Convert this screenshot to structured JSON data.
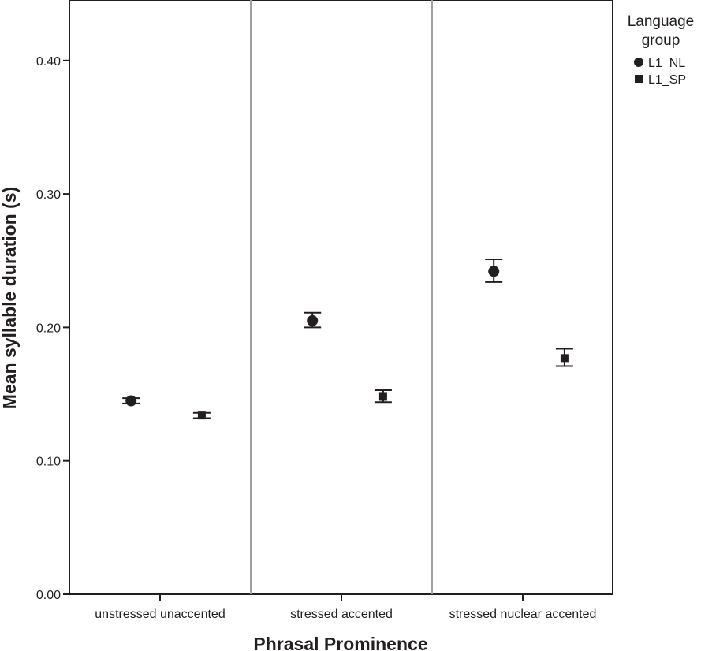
{
  "chart_data": {
    "type": "scatter",
    "xlabel": "Phrasal Prominence",
    "ylabel": "Mean syllable duration (s)",
    "ylim": [
      0,
      0.44
    ],
    "yticks": [
      "0.00",
      "0.10",
      "0.20",
      "0.30",
      "0.40"
    ],
    "categories": [
      "unstressed unaccented",
      "stressed accented",
      "stressed nuclear accented"
    ],
    "grid": false,
    "legend": {
      "title_lines": [
        "Language",
        "group"
      ],
      "placement": "right",
      "entries": [
        "L1_NL",
        "L1_SP"
      ]
    },
    "series": [
      {
        "name": "L1_NL",
        "marker": "circle",
        "values": [
          0.145,
          0.205,
          0.242
        ],
        "error_low": [
          0.143,
          0.2,
          0.234
        ],
        "error_high": [
          0.147,
          0.211,
          0.251
        ]
      },
      {
        "name": "L1_SP",
        "marker": "square",
        "values": [
          0.134,
          0.148,
          0.177
        ],
        "error_low": [
          0.132,
          0.144,
          0.171
        ],
        "error_high": [
          0.136,
          0.153,
          0.184
        ]
      }
    ]
  }
}
